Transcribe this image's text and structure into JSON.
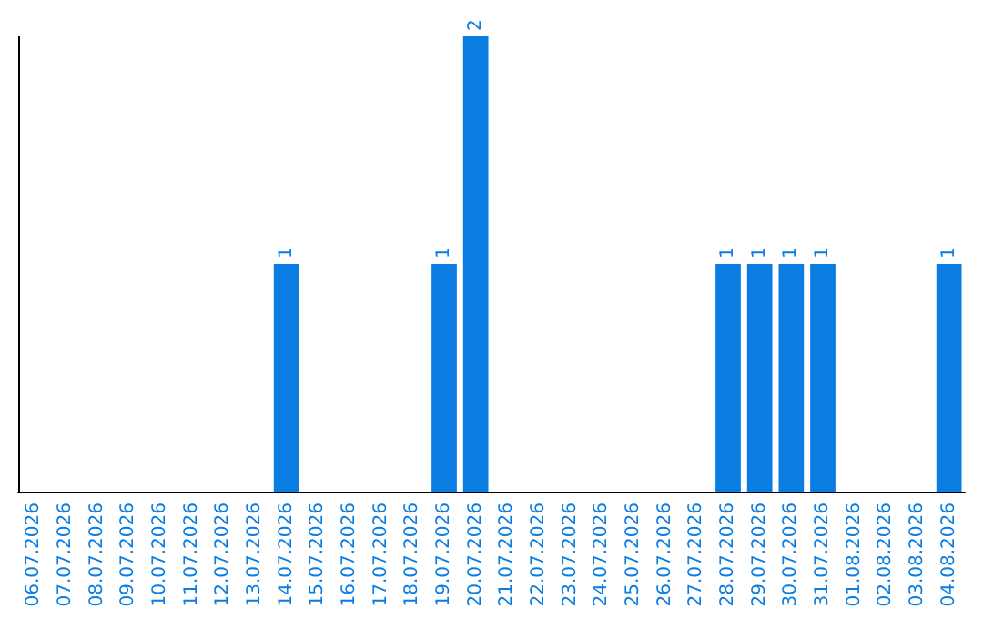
{
  "chart_data": {
    "type": "bar",
    "categories": [
      "06.07.2026",
      "07.07.2026",
      "08.07.2026",
      "09.07.2026",
      "10.07.2026",
      "11.07.2026",
      "12.07.2026",
      "13.07.2026",
      "14.07.2026",
      "15.07.2026",
      "16.07.2026",
      "17.07.2026",
      "18.07.2026",
      "19.07.2026",
      "20.07.2026",
      "21.07.2026",
      "22.07.2026",
      "23.07.2026",
      "24.07.2026",
      "25.07.2026",
      "26.07.2026",
      "27.07.2026",
      "28.07.2026",
      "29.07.2026",
      "30.07.2026",
      "31.07.2026",
      "01.08.2026",
      "02.08.2026",
      "03.08.2026",
      "04.08.2026"
    ],
    "values": [
      0,
      0,
      0,
      0,
      0,
      0,
      0,
      0,
      1,
      0,
      0,
      0,
      0,
      1,
      2,
      0,
      0,
      0,
      0,
      0,
      0,
      0,
      1,
      1,
      1,
      1,
      0,
      0,
      0,
      1
    ],
    "value_labels": [
      null,
      null,
      null,
      null,
      null,
      null,
      null,
      null,
      "1",
      null,
      null,
      null,
      null,
      "1",
      "2",
      null,
      null,
      null,
      null,
      null,
      null,
      null,
      "1",
      "1",
      "1",
      "1",
      null,
      null,
      null,
      "1"
    ],
    "color": "#0a7de3",
    "tick_labels": "x",
    "grid": false
  }
}
